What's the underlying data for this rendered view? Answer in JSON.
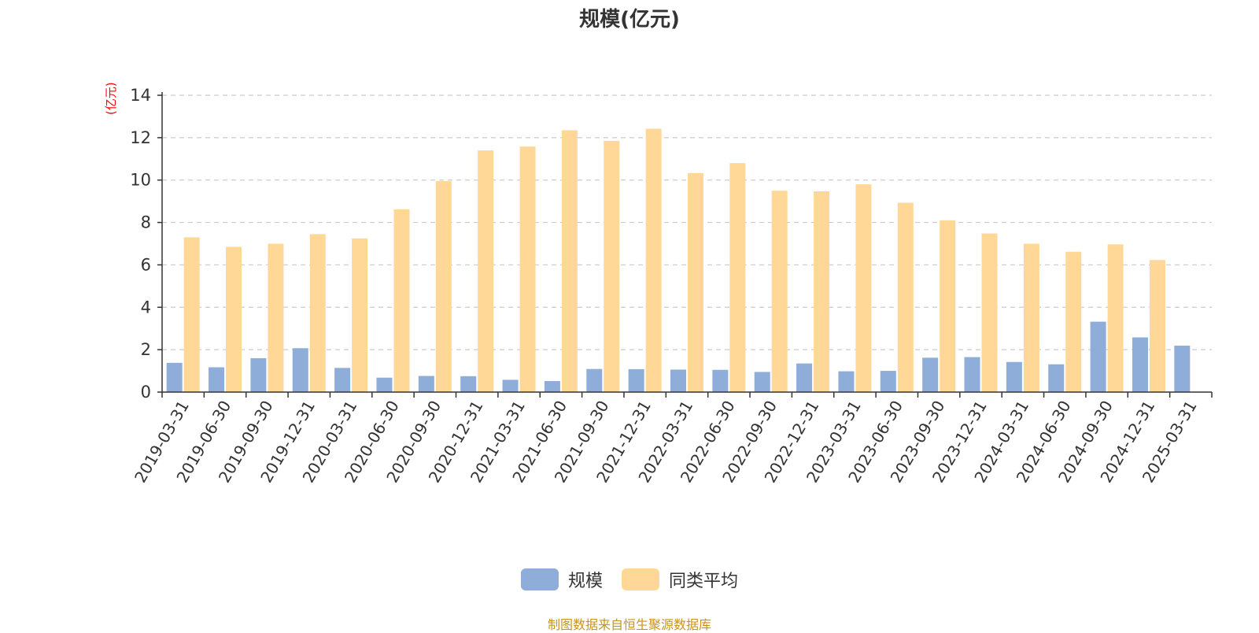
{
  "title": "规模(亿元)",
  "y_unit": "(亿元)",
  "source": "制图数据来自恒生聚源数据库",
  "colors": {
    "scale": "#8eadd9",
    "average": "#ffd898",
    "axis": "#333333",
    "grid": "#cccccc",
    "source": "#c8941a",
    "unit": "#ff0000"
  },
  "legend": {
    "items": [
      {
        "name": "规模"
      },
      {
        "name": "同类平均"
      }
    ]
  },
  "chart_data": {
    "type": "bar",
    "title": "规模(亿元)",
    "ylabel": "(亿元)",
    "ylim": [
      0,
      14
    ],
    "yticks": [
      0,
      2,
      4,
      6,
      8,
      10,
      12,
      14
    ],
    "grid": true,
    "legend_position": "bottom",
    "categories": [
      "2019-03-31",
      "2019-06-30",
      "2019-09-30",
      "2019-12-31",
      "2020-03-31",
      "2020-06-30",
      "2020-09-30",
      "2020-12-31",
      "2021-03-31",
      "2021-06-30",
      "2021-09-30",
      "2021-12-31",
      "2022-03-31",
      "2022-06-30",
      "2022-09-30",
      "2022-12-31",
      "2023-03-31",
      "2023-06-30",
      "2023-09-30",
      "2023-12-31",
      "2024-03-31",
      "2024-06-30",
      "2024-09-30",
      "2024-12-31",
      "2025-03-31"
    ],
    "series": [
      {
        "name": "规模",
        "values": [
          1.38,
          1.17,
          1.6,
          2.07,
          1.14,
          0.68,
          0.76,
          0.75,
          0.58,
          0.52,
          1.09,
          1.08,
          1.06,
          1.05,
          0.95,
          1.35,
          0.98,
          1.0,
          1.62,
          1.65,
          1.42,
          1.31,
          3.32,
          2.58,
          2.19
        ]
      },
      {
        "name": "同类平均",
        "values": [
          7.3,
          6.85,
          7.0,
          7.45,
          7.25,
          8.62,
          9.95,
          11.4,
          11.58,
          12.35,
          11.85,
          12.42,
          10.33,
          10.8,
          9.5,
          9.47,
          9.8,
          8.93,
          8.1,
          7.48,
          7.0,
          6.62,
          6.97,
          6.23,
          null
        ]
      }
    ]
  }
}
